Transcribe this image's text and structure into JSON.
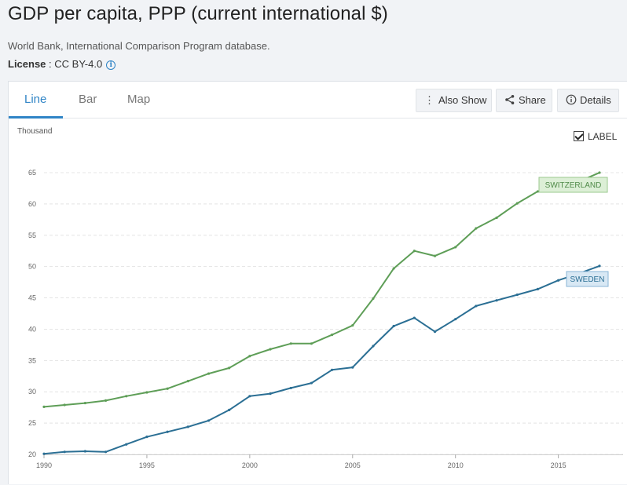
{
  "header": {
    "title": "GDP per capita, PPP (current international $)",
    "source": "World Bank, International Comparison Program database.",
    "license_label": "License",
    "license_value": " : CC BY-4.0"
  },
  "tabs": [
    {
      "label": "Line",
      "active": true
    },
    {
      "label": "Bar",
      "active": false
    },
    {
      "label": "Map",
      "active": false
    }
  ],
  "toolbar": {
    "also_show": "Also Show",
    "share": "Share",
    "details": "Details"
  },
  "label_toggle": {
    "label": "LABEL",
    "checked": true
  },
  "colors": {
    "switzerland": "#5e9e57",
    "sweden": "#2b6f94",
    "accent": "#2f84c6"
  },
  "chart_data": {
    "type": "line",
    "unit_label": "Thousand",
    "x": [
      1990,
      1991,
      1992,
      1993,
      1994,
      1995,
      1996,
      1997,
      1998,
      1999,
      2000,
      2001,
      2002,
      2003,
      2004,
      2005,
      2006,
      2007,
      2008,
      2009,
      2010,
      2011,
      2012,
      2013,
      2014,
      2015,
      2016,
      2017
    ],
    "xticks": [
      1990,
      1995,
      2000,
      2005,
      2010,
      2015
    ],
    "yticks": [
      20,
      25,
      30,
      35,
      40,
      45,
      50,
      55,
      60,
      65
    ],
    "ylim": [
      20,
      65
    ],
    "xlim": [
      1990,
      2017
    ],
    "grid": true,
    "series": [
      {
        "name": "SWITZERLAND",
        "color": "#5e9e57",
        "values": [
          27.6,
          27.9,
          28.2,
          28.6,
          29.3,
          29.9,
          30.5,
          31.7,
          32.9,
          33.8,
          35.7,
          36.8,
          37.7,
          37.7,
          39.1,
          40.6,
          44.9,
          49.7,
          52.5,
          51.7,
          53.1,
          56.1,
          57.8,
          60.1,
          62.0,
          62.6,
          63.6,
          65.0
        ]
      },
      {
        "name": "SWEDEN",
        "color": "#2b6f94",
        "values": [
          20.1,
          20.4,
          20.5,
          20.4,
          21.6,
          22.8,
          23.6,
          24.4,
          25.4,
          27.1,
          29.3,
          29.7,
          30.6,
          31.4,
          33.5,
          33.9,
          37.3,
          40.5,
          41.8,
          39.6,
          41.6,
          43.7,
          44.6,
          45.5,
          46.4,
          47.8,
          48.9,
          50.1
        ]
      }
    ]
  }
}
